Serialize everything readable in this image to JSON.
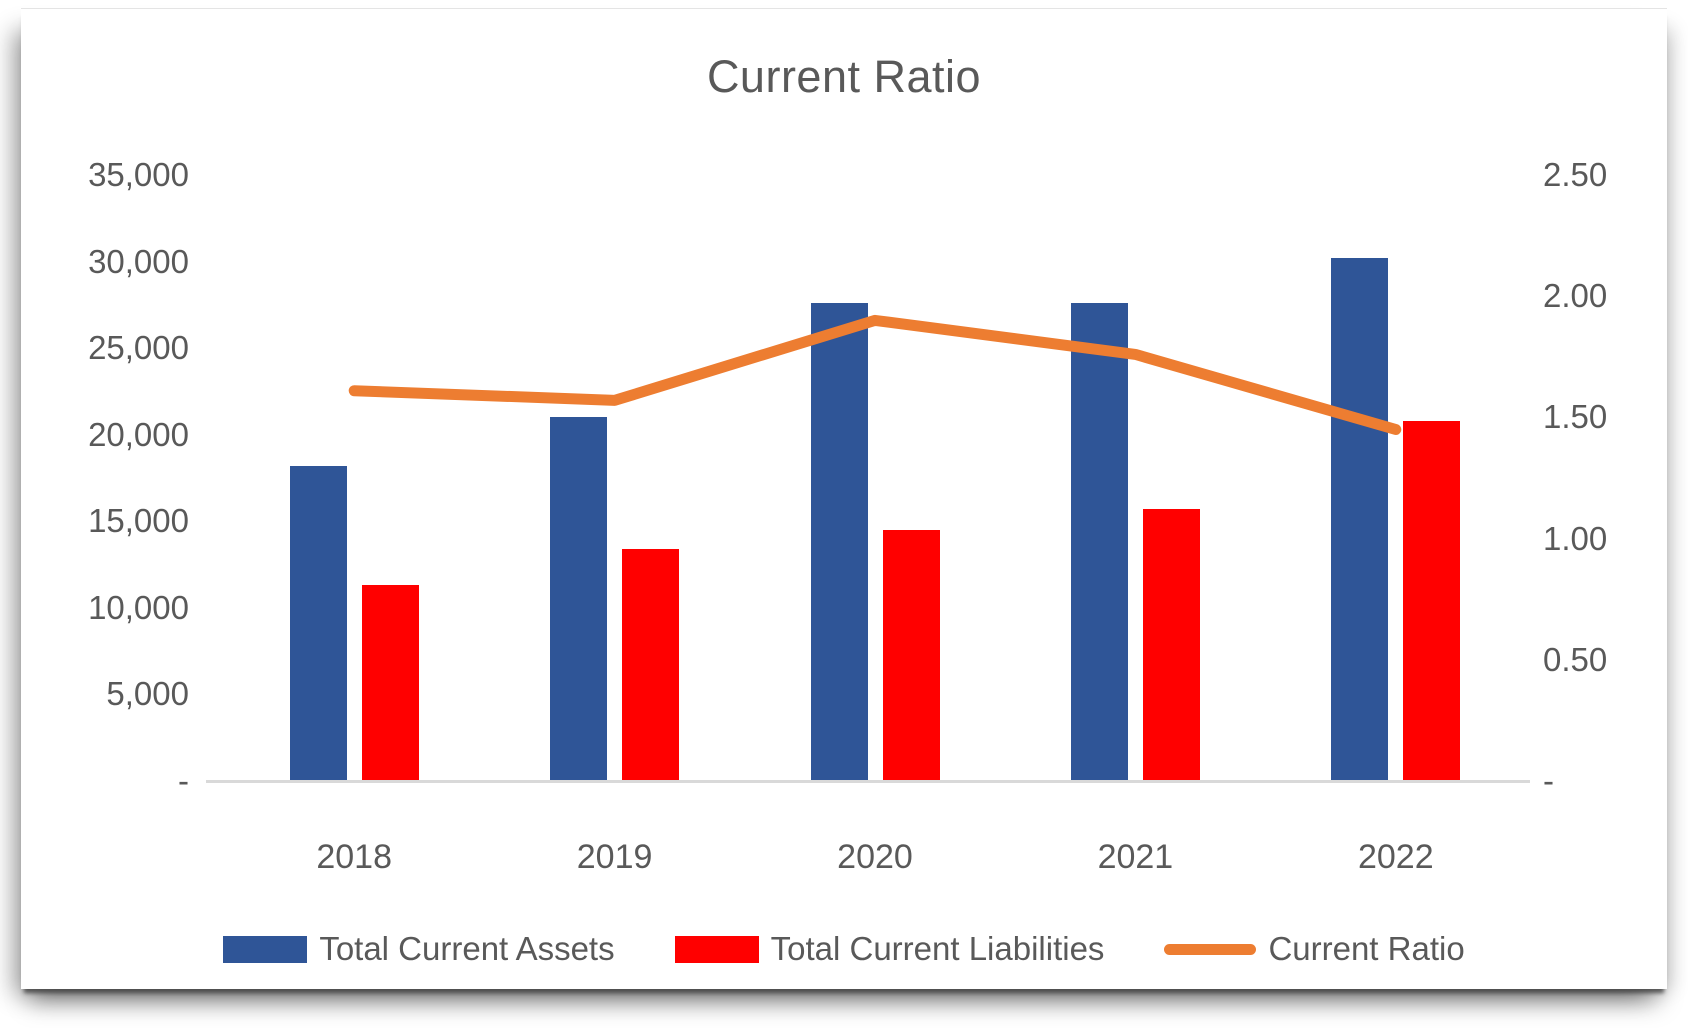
{
  "chart_data": {
    "type": "bar",
    "subtype": "combo-bar-line",
    "title": "Current Ratio",
    "categories": [
      "2018",
      "2019",
      "2020",
      "2021",
      "2022"
    ],
    "series": [
      {
        "name": "Total Current Assets",
        "type": "bar",
        "axis": "left",
        "color": "#2F5597",
        "values": [
          18200,
          21000,
          27600,
          27600,
          30200
        ]
      },
      {
        "name": "Total Current Liabilities",
        "type": "bar",
        "axis": "left",
        "color": "#FF0000",
        "values": [
          11300,
          13400,
          14500,
          15700,
          20800
        ]
      },
      {
        "name": "Current Ratio",
        "type": "line",
        "axis": "right",
        "color": "#ED7D31",
        "values": [
          1.61,
          1.57,
          1.9,
          1.76,
          1.45
        ]
      }
    ],
    "left_axis": {
      "min": 0,
      "max": 35000,
      "step": 5000,
      "tick_labels": [
        "35,000",
        "30,000",
        "25,000",
        "20,000",
        "15,000",
        "10,000",
        "5,000",
        "-"
      ]
    },
    "right_axis": {
      "min": 0,
      "max": 2.5,
      "step": 0.5,
      "tick_labels": [
        "2.50",
        "2.00",
        "1.50",
        "1.00",
        "0.50",
        "-"
      ]
    },
    "grid": false,
    "legend_position": "bottom",
    "colors": {
      "title_text": "#595959",
      "axis_text": "#595959",
      "axis_line": "#d9d9d9",
      "assets_bar": "#2F5597",
      "liabilities_bar": "#FF0000",
      "ratio_line": "#ED7D31"
    }
  }
}
